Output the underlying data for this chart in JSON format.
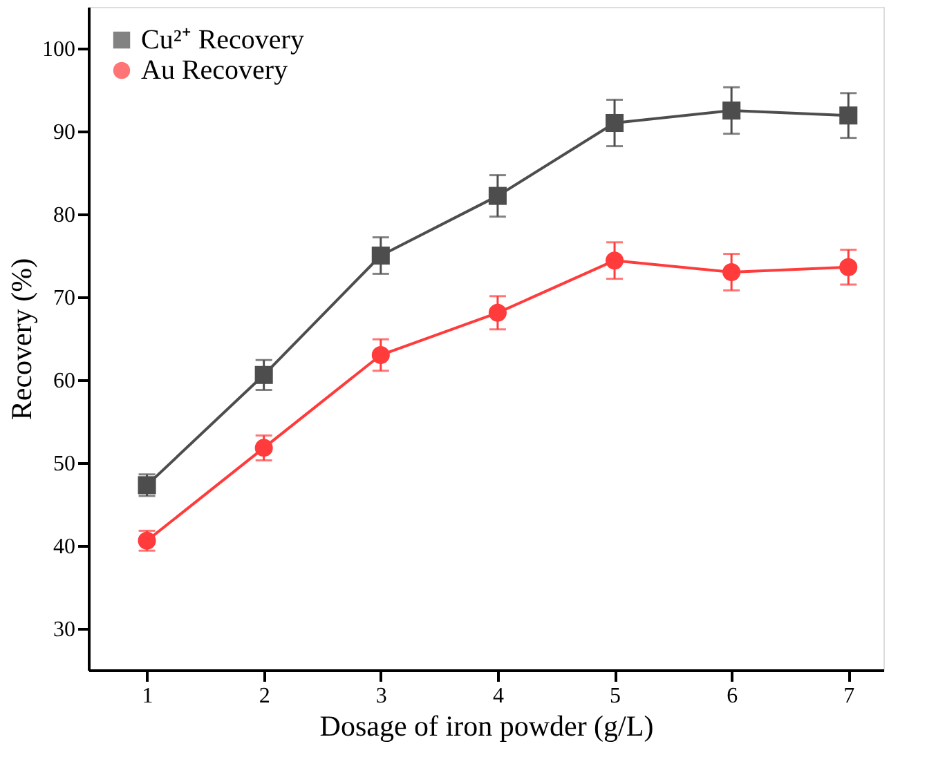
{
  "chart_data": {
    "type": "line",
    "xlabel": "Dosage of iron powder (g/L)",
    "ylabel": "Recovery (%)",
    "x": [
      1,
      2,
      3,
      4,
      5,
      6,
      7
    ],
    "series": [
      {
        "name": "Cu²⁺ Recovery",
        "color": "#4d4d4d",
        "marker": "square",
        "values": [
          47.3,
          60.6,
          75.0,
          82.2,
          91.0,
          92.5,
          91.9
        ],
        "errors": [
          1.3,
          1.8,
          2.2,
          2.5,
          2.8,
          2.8,
          2.7
        ]
      },
      {
        "name": "Au Recovery",
        "color": "#ff3b3b",
        "marker": "circle",
        "values": [
          40.6,
          51.8,
          63.0,
          68.1,
          74.4,
          73.0,
          73.6
        ],
        "errors": [
          1.2,
          1.5,
          1.9,
          2.0,
          2.2,
          2.2,
          2.1
        ]
      }
    ],
    "xlim": [
      0.5,
      7.3
    ],
    "xticks": [
      1,
      2,
      3,
      4,
      5,
      6,
      7
    ],
    "ylim": [
      25,
      105
    ],
    "yticks": [
      30,
      40,
      50,
      60,
      70,
      80,
      90,
      100
    ],
    "grid": false,
    "legend": "top left",
    "line_style": "solid"
  }
}
